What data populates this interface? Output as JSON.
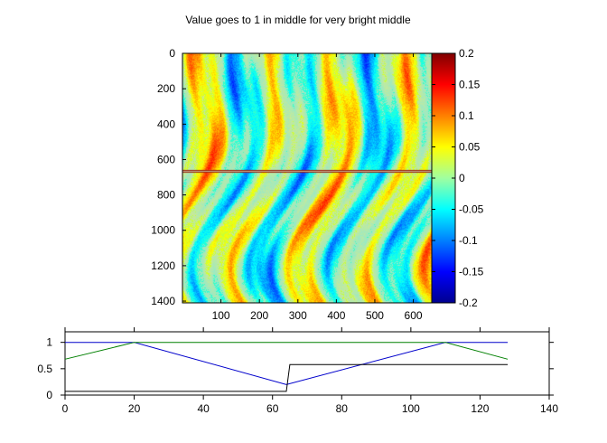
{
  "figure": {
    "title": "Value goes to 1 in middle for very bright middle"
  },
  "chart_data": [
    {
      "type": "heatmap",
      "title": "Value goes to 1 in middle for very bright middle",
      "xlim": [
        0,
        648
      ],
      "ylim": [
        1410,
        0
      ],
      "xticks": [
        100,
        200,
        300,
        400,
        500,
        600
      ],
      "yticks": [
        0,
        200,
        400,
        600,
        800,
        1000,
        1200,
        1400
      ],
      "colormap": "jet",
      "colorbar": {
        "range": [
          -0.2,
          0.2
        ],
        "ticks": [
          "0.2",
          "0.15",
          "0.1",
          "0.05",
          "0",
          "-0.05",
          "-0.1",
          "-0.15",
          "-0.2"
        ],
        "tick_values": [
          0.2,
          0.15,
          0.1,
          0.05,
          0,
          -0.05,
          -0.1,
          -0.15,
          -0.2
        ]
      },
      "bright_row_y": 665
    },
    {
      "type": "line",
      "xlim": [
        0,
        140
      ],
      "ylim": [
        0,
        1.2
      ],
      "xticks": [
        0,
        20,
        40,
        60,
        80,
        100,
        120,
        140
      ],
      "yticks": [
        0,
        0.5,
        1
      ],
      "ytick_labels": [
        "0",
        "0.5",
        "1"
      ],
      "series": [
        {
          "color": "#0000cc",
          "points": [
            [
              0,
              1
            ],
            [
              20,
              1
            ],
            [
              64,
              0.2
            ],
            [
              110,
              1
            ],
            [
              128,
              1
            ]
          ]
        },
        {
          "color": "#008000",
          "points": [
            [
              0,
              0.68
            ],
            [
              20,
              1
            ],
            [
              110,
              1
            ],
            [
              128,
              0.68
            ]
          ]
        },
        {
          "color": "#000000",
          "points": [
            [
              0,
              0.07
            ],
            [
              64,
              0.07
            ],
            [
              65,
              0.58
            ],
            [
              128,
              0.58
            ]
          ]
        }
      ]
    }
  ]
}
